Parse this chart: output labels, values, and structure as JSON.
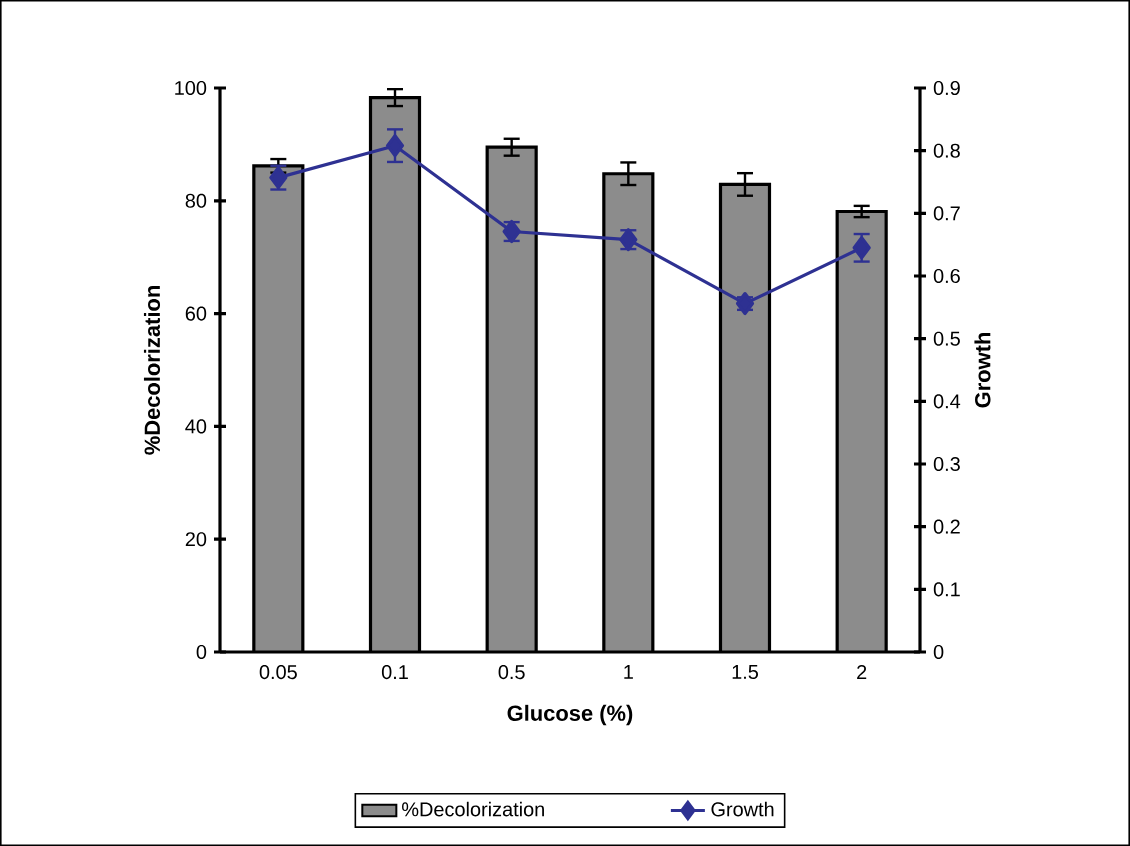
{
  "chart_data": {
    "type": "bar",
    "xlabel": "Glucose (%)",
    "ylabel": "%Decolorization",
    "y2label": "Growth",
    "categories": [
      "0.05",
      "0.1",
      "0.5",
      "1",
      "1.5",
      "2"
    ],
    "series": [
      {
        "name": "%Decolorization",
        "color": "#8c8c8c",
        "values": [
          86.2,
          98.3,
          89.5,
          84.8,
          82.9,
          78.1
        ],
        "errors": [
          1.2,
          1.5,
          1.5,
          2,
          2,
          1
        ]
      },
      {
        "name": "Growth",
        "type": "line",
        "axis": "y2",
        "color": "#2e3192",
        "values": [
          0.757,
          0.808,
          0.671,
          0.658,
          0.556,
          0.645
        ],
        "errors": [
          0.019,
          0.026,
          0.015,
          0.015,
          0.01,
          0.022
        ]
      }
    ],
    "ylim": [
      0,
      100
    ],
    "yticks": [
      0,
      20,
      40,
      60,
      80,
      100
    ],
    "y2lim": [
      0,
      0.9
    ],
    "y2ticks": [
      0,
      0.1,
      0.2,
      0.3,
      0.4,
      0.5,
      0.6,
      0.7,
      0.8,
      0.9
    ],
    "legend": "bottom",
    "marker": "diamond"
  }
}
